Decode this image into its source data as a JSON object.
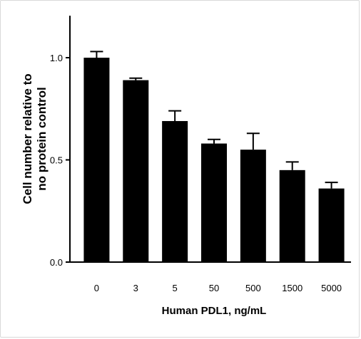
{
  "chart_data": {
    "type": "bar",
    "categories": [
      "0",
      "3",
      "5",
      "50",
      "500",
      "1500",
      "5000"
    ],
    "values": [
      1.0,
      0.89,
      0.69,
      0.58,
      0.55,
      0.45,
      0.36
    ],
    "errors": [
      0.03,
      0.01,
      0.05,
      0.02,
      0.08,
      0.04,
      0.03
    ],
    "xlabel": "Human PDL1, ng/mL",
    "ylabel": "Cell number relative to no protein control",
    "ylabel_lines": [
      "Cell number relative to",
      "no protein control"
    ],
    "ylim": [
      0,
      1.2
    ],
    "yticks": [
      "0.0",
      "0.5",
      "1.0"
    ],
    "bar_color": "#000000",
    "grid": false
  }
}
